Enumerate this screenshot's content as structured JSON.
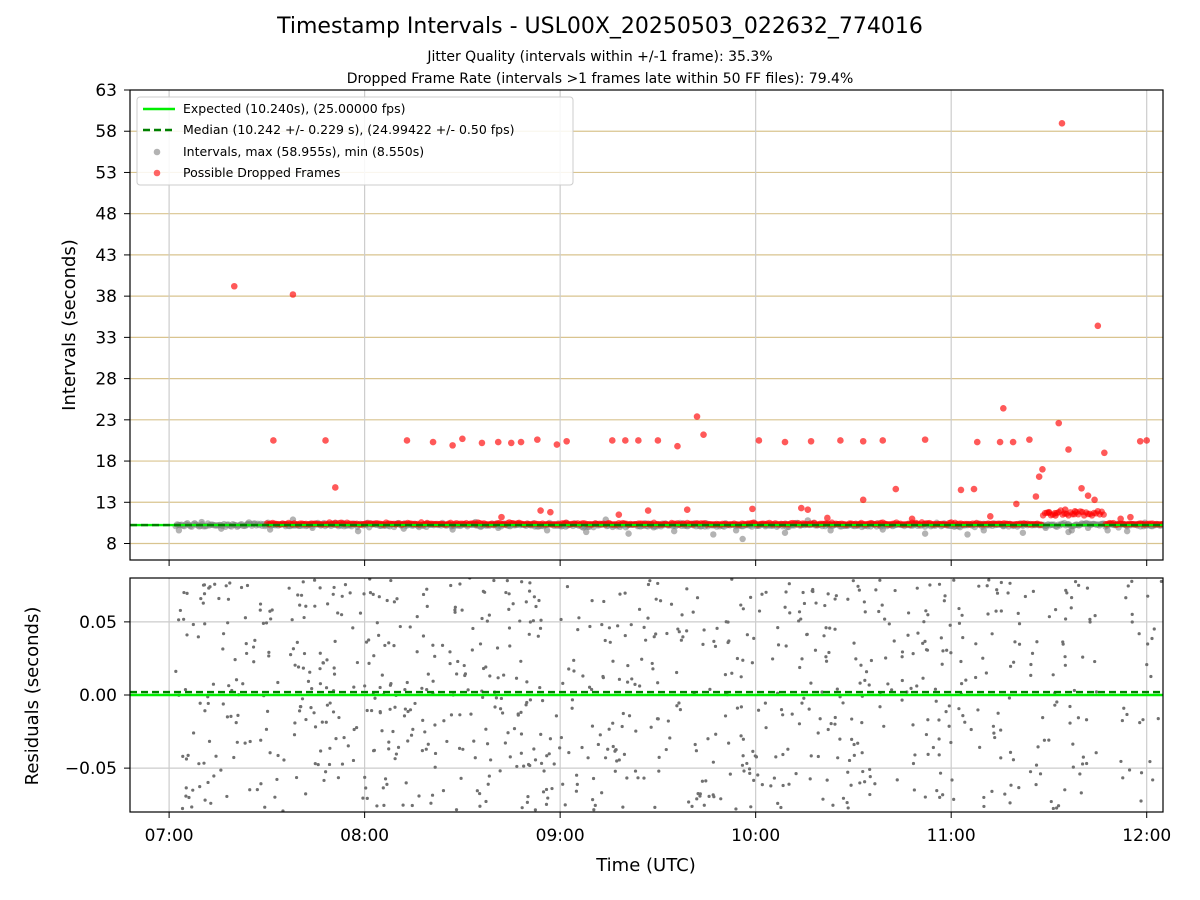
{
  "figure": {
    "title": "Timestamp Intervals - USL00X_20250503_022632_774016",
    "subtitle_jitter": "Jitter Quality (intervals within +/-1 frame): 35.3%",
    "subtitle_dropped": "Dropped Frame Rate (intervals >1 frames late within 50 FF files): 79.4%"
  },
  "chart_data": [
    {
      "type": "scatter",
      "panel": "top",
      "title": "",
      "xlabel": "",
      "ylabel": "Intervals (seconds)",
      "xlim": [
        "06:48",
        "12:05"
      ],
      "ylim": [
        6.0,
        63.0
      ],
      "y_ticks": [
        8,
        13,
        18,
        23,
        28,
        33,
        38,
        43,
        48,
        53,
        58,
        63
      ],
      "y_tick_labels": [
        "8",
        "13",
        "18",
        "23",
        "28",
        "33",
        "38",
        "43",
        "48",
        "53",
        "58",
        "63"
      ],
      "x_ticks": [
        "07:00",
        "08:00",
        "09:00",
        "10:00",
        "11:00",
        "12:00"
      ],
      "grid": "horizontal lines at y ticks (tan), vertical lines at hour ticks (light grey)",
      "legend_position": "top-left",
      "legend": [
        {
          "label": "Expected (10.240s), (25.00000 fps)",
          "style": "solid-line",
          "color": "#00ee00"
        },
        {
          "label": "Median (10.242 +/- 0.229 s), (24.99422 +/- 0.50 fps)",
          "style": "dashed-line",
          "color": "#008000"
        },
        {
          "label": "Intervals, max (58.955s), min (8.550s)",
          "style": "marker",
          "color": "#808080"
        },
        {
          "label": "Possible Dropped Frames",
          "style": "marker",
          "color": "#ff0000"
        }
      ],
      "reference_lines": {
        "expected": 10.24,
        "median": 10.242
      },
      "series": [
        {
          "name": "Intervals, max (58.955s), min (8.550s)",
          "color": "#808080",
          "band": {
            "x_start": "07:02",
            "x_end": "12:05",
            "y_center": 10.24,
            "note": "dense band of intervals near 10.24 s"
          },
          "points": [
            {
              "x": "07:03",
              "y": 9.6
            },
            {
              "x": "07:10",
              "y": 10.6
            },
            {
              "x": "07:16",
              "y": 9.8
            },
            {
              "x": "07:24",
              "y": 10.3
            },
            {
              "x": "07:31",
              "y": 9.7
            },
            {
              "x": "07:38",
              "y": 10.9
            },
            {
              "x": "07:44",
              "y": 9.9
            },
            {
              "x": "07:51",
              "y": 10.5
            },
            {
              "x": "07:58",
              "y": 9.5
            },
            {
              "x": "08:05",
              "y": 10.2
            },
            {
              "x": "08:12",
              "y": 9.8
            },
            {
              "x": "08:19",
              "y": 10.4
            },
            {
              "x": "08:27",
              "y": 9.7
            },
            {
              "x": "08:34",
              "y": 10.6
            },
            {
              "x": "08:41",
              "y": 9.9
            },
            {
              "x": "08:49",
              "y": 10.3
            },
            {
              "x": "08:56",
              "y": 9.6
            },
            {
              "x": "09:02",
              "y": 10.5
            },
            {
              "x": "09:08",
              "y": 9.4
            },
            {
              "x": "09:14",
              "y": 10.9
            },
            {
              "x": "09:21",
              "y": 9.2
            },
            {
              "x": "09:28",
              "y": 10.4
            },
            {
              "x": "09:35",
              "y": 9.5
            },
            {
              "x": "09:41",
              "y": 10.2
            },
            {
              "x": "09:47",
              "y": 9.1
            },
            {
              "x": "09:54",
              "y": 9.6
            },
            {
              "x": "09:56",
              "y": 8.55
            },
            {
              "x": "10:03",
              "y": 10.1
            },
            {
              "x": "10:09",
              "y": 9.3
            },
            {
              "x": "10:16",
              "y": 10.8
            },
            {
              "x": "10:23",
              "y": 9.6
            },
            {
              "x": "10:31",
              "y": 10.2
            },
            {
              "x": "10:39",
              "y": 9.7
            },
            {
              "x": "10:47",
              "y": 10.4
            },
            {
              "x": "10:52",
              "y": 9.2
            },
            {
              "x": "10:58",
              "y": 10.3
            },
            {
              "x": "11:05",
              "y": 9.1
            },
            {
              "x": "11:10",
              "y": 9.6
            },
            {
              "x": "11:16",
              "y": 10.1
            },
            {
              "x": "11:22",
              "y": 9.3
            },
            {
              "x": "11:29",
              "y": 9.9
            },
            {
              "x": "11:36",
              "y": 9.4
            },
            {
              "x": "11:42",
              "y": 9.9
            },
            {
              "x": "11:48",
              "y": 9.6
            },
            {
              "x": "11:54",
              "y": 9.5
            },
            {
              "x": "11:59",
              "y": 10.1
            },
            {
              "x": "11:37",
              "y": 9.6
            }
          ]
        },
        {
          "name": "Possible Dropped Frames",
          "color": "#ff0000",
          "band": {
            "x_start": "07:30",
            "x_end": "12:05",
            "y_center": 10.3,
            "note": "dense band of flagged intervals just above 10.24 s"
          },
          "points": [
            {
              "x": "07:20",
              "y": 39.2
            },
            {
              "x": "07:32",
              "y": 20.5
            },
            {
              "x": "07:38",
              "y": 38.2
            },
            {
              "x": "07:48",
              "y": 20.5
            },
            {
              "x": "07:51",
              "y": 14.8
            },
            {
              "x": "08:13",
              "y": 20.5
            },
            {
              "x": "08:21",
              "y": 20.3
            },
            {
              "x": "08:27",
              "y": 19.9
            },
            {
              "x": "08:30",
              "y": 20.7
            },
            {
              "x": "08:36",
              "y": 20.2
            },
            {
              "x": "08:41",
              "y": 20.3
            },
            {
              "x": "08:45",
              "y": 20.2
            },
            {
              "x": "08:48",
              "y": 20.3
            },
            {
              "x": "08:53",
              "y": 20.6
            },
            {
              "x": "08:59",
              "y": 20.0
            },
            {
              "x": "09:02",
              "y": 20.4
            },
            {
              "x": "09:16",
              "y": 20.5
            },
            {
              "x": "09:20",
              "y": 20.5
            },
            {
              "x": "09:24",
              "y": 20.5
            },
            {
              "x": "09:30",
              "y": 20.5
            },
            {
              "x": "09:36",
              "y": 19.8
            },
            {
              "x": "09:42",
              "y": 23.4
            },
            {
              "x": "09:44",
              "y": 21.2
            },
            {
              "x": "10:01",
              "y": 20.5
            },
            {
              "x": "10:09",
              "y": 20.3
            },
            {
              "x": "10:17",
              "y": 20.4
            },
            {
              "x": "10:26",
              "y": 20.5
            },
            {
              "x": "10:33",
              "y": 20.4
            },
            {
              "x": "10:39",
              "y": 20.5
            },
            {
              "x": "10:52",
              "y": 20.6
            },
            {
              "x": "11:08",
              "y": 20.3
            },
            {
              "x": "11:15",
              "y": 20.3
            },
            {
              "x": "11:19",
              "y": 20.3
            },
            {
              "x": "11:24",
              "y": 20.6
            },
            {
              "x": "11:16",
              "y": 24.4
            },
            {
              "x": "11:33",
              "y": 22.6
            },
            {
              "x": "11:36",
              "y": 19.4
            },
            {
              "x": "11:45",
              "y": 34.4
            },
            {
              "x": "11:47",
              "y": 19.0
            },
            {
              "x": "11:58",
              "y": 20.4
            },
            {
              "x": "12:00",
              "y": 20.5
            },
            {
              "x": "11:34",
              "y": 58.955
            },
            {
              "x": "10:33",
              "y": 13.3
            },
            {
              "x": "10:43",
              "y": 14.6
            },
            {
              "x": "11:03",
              "y": 14.5
            },
            {
              "x": "11:07",
              "y": 14.6
            },
            {
              "x": "11:28",
              "y": 17.0
            },
            {
              "x": "11:27",
              "y": 16.1
            },
            {
              "x": "11:26",
              "y": 13.7
            },
            {
              "x": "11:40",
              "y": 14.7
            },
            {
              "x": "11:44",
              "y": 13.3
            },
            {
              "x": "11:42",
              "y": 13.8
            },
            {
              "x": "11:20",
              "y": 12.8
            },
            {
              "x": "10:14",
              "y": 12.3
            },
            {
              "x": "10:16",
              "y": 12.1
            },
            {
              "x": "09:59",
              "y": 12.2
            },
            {
              "x": "08:54",
              "y": 12.0
            },
            {
              "x": "08:57",
              "y": 11.8
            },
            {
              "x": "09:18",
              "y": 11.5
            },
            {
              "x": "09:27",
              "y": 12.0
            },
            {
              "x": "09:39",
              "y": 12.1
            },
            {
              "x": "08:42",
              "y": 11.2
            },
            {
              "x": "10:22",
              "y": 11.1
            },
            {
              "x": "10:48",
              "y": 11.0
            },
            {
              "x": "11:30",
              "y": 11.8
            },
            {
              "x": "11:35",
              "y": 12.1
            },
            {
              "x": "11:38",
              "y": 11.9
            },
            {
              "x": "11:32",
              "y": 11.4
            },
            {
              "x": "11:12",
              "y": 11.3
            },
            {
              "x": "11:55",
              "y": 11.2
            },
            {
              "x": "11:52",
              "y": 11.0
            }
          ]
        }
      ]
    },
    {
      "type": "scatter",
      "panel": "bottom",
      "title": "",
      "xlabel": "Time (UTC)",
      "ylabel": "Residuals (seconds)",
      "xlim": [
        "06:48",
        "12:05"
      ],
      "ylim": [
        -0.08,
        0.08
      ],
      "y_ticks": [
        0.05,
        0.0,
        -0.05
      ],
      "y_tick_labels": [
        "0.05",
        "0.00",
        "−0.05"
      ],
      "x_ticks": [
        "07:00",
        "08:00",
        "09:00",
        "10:00",
        "11:00",
        "12:00"
      ],
      "x_tick_labels": [
        "07:00",
        "08:00",
        "09:00",
        "10:00",
        "11:00",
        "12:00"
      ],
      "grid": "light grey lines at both axes ticks",
      "reference_lines": {
        "expected": 0.0,
        "median": 0.002
      },
      "series": [
        {
          "name": "",
          "color": "#707070",
          "note": "residuals scattered uniformly between -0.08 and 0.08, sparse gap around 11:45-11:52",
          "distribution": {
            "x_start": "07:02",
            "x_end": "12:05",
            "y_min": -0.08,
            "y_max": 0.08,
            "count": 900,
            "gap": [
              "11:45",
              "11:52"
            ]
          }
        }
      ]
    }
  ]
}
